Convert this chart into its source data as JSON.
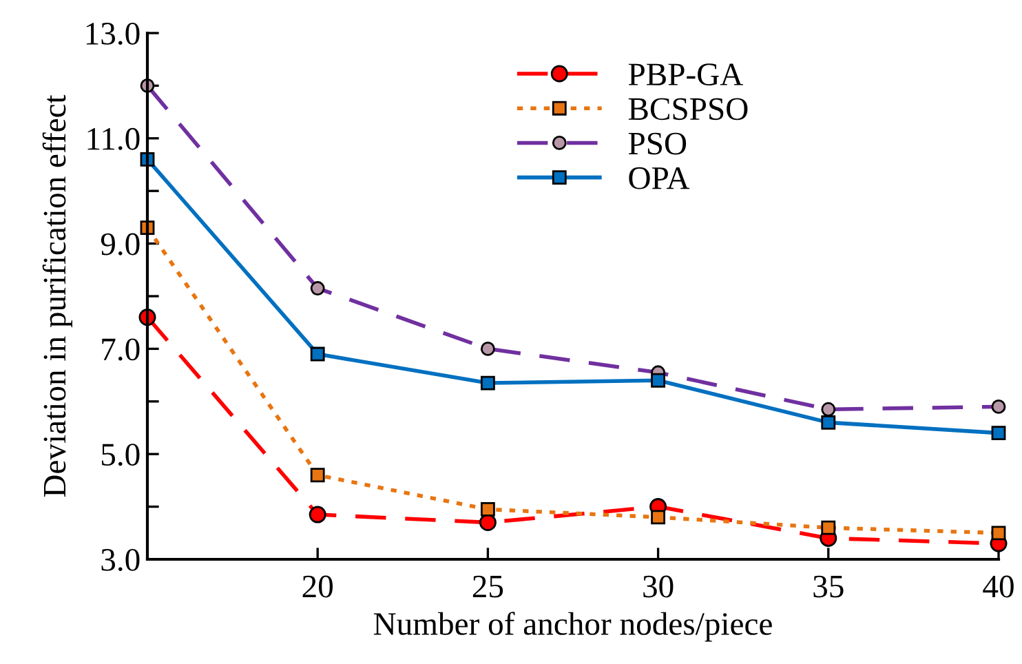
{
  "chart_data": {
    "type": "line",
    "xlabel": "Number of anchor nodes/piece",
    "ylabel": "Deviation in purification effect",
    "x": [
      15,
      20,
      25,
      30,
      35,
      40
    ],
    "xlim": [
      15,
      40
    ],
    "xticks": [
      {
        "value": 15,
        "label": null
      },
      20,
      25,
      30,
      35,
      40
    ],
    "ylim": [
      3.0,
      13.0
    ],
    "yticks": [
      {
        "value": 3,
        "label": "3.0"
      },
      {
        "value": 4,
        "label": null
      },
      {
        "value": 5,
        "label": "5.0"
      },
      {
        "value": 6,
        "label": null
      },
      {
        "value": 7,
        "label": "7.0"
      },
      {
        "value": 8,
        "label": null
      },
      {
        "value": 9,
        "label": "9.0"
      },
      {
        "value": 10,
        "label": null
      },
      {
        "value": 11,
        "label": "11.0"
      },
      {
        "value": 12,
        "label": null
      },
      {
        "value": 13,
        "label": "13.0"
      }
    ],
    "grid": false,
    "legend": "top right",
    "series": [
      {
        "name": "PBP-GA",
        "color": "#ff0000",
        "marker": "circle",
        "line_style": "dashed",
        "values": [
          7.6,
          3.85,
          3.7,
          4.0,
          3.4,
          3.3
        ]
      },
      {
        "name": "BCSPSO",
        "color": "#e87511",
        "marker": "square",
        "line_style": "dotted",
        "values": [
          9.3,
          4.6,
          3.95,
          3.8,
          3.6,
          3.5
        ]
      },
      {
        "name": "PSO",
        "color": "#7030a0",
        "marker": "circle",
        "line_style": "dashed",
        "values": [
          12.0,
          8.15,
          7.0,
          6.55,
          5.85,
          5.9
        ]
      },
      {
        "name": "OPA",
        "color": "#0070c0",
        "marker": "square",
        "line_style": "solid",
        "values": [
          10.6,
          6.9,
          6.35,
          6.4,
          5.6,
          5.4
        ]
      }
    ]
  }
}
